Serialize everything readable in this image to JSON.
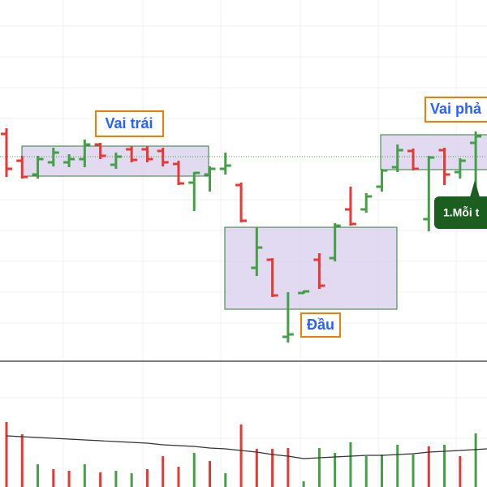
{
  "chart_data": [
    {
      "type": "ohlc",
      "up_color": "#43a047",
      "down_color": "#e53935",
      "ylim": [
        0,
        445
      ],
      "reference_line": 252,
      "open": [
        280,
        247,
        230,
        245,
        245,
        249,
        267,
        242,
        261,
        261,
        259,
        243,
        220,
        230,
        237,
        217,
        115,
        125,
        30,
        84,
        125,
        127,
        187,
        187,
        215,
        239,
        259,
        175,
        260,
        233,
        269
      ],
      "high": [
        287,
        253,
        253,
        263,
        255,
        273,
        269,
        257,
        265,
        265,
        263,
        247,
        233,
        240,
        257,
        220,
        165,
        127,
        85,
        87,
        133,
        170,
        215,
        207,
        237,
        267,
        262,
        253,
        263,
        250,
        283
      ],
      "low": [
        227,
        225,
        225,
        240,
        239,
        239,
        249,
        237,
        245,
        245,
        240,
        217,
        185,
        209,
        230,
        171,
        105,
        79,
        23,
        83,
        89,
        123,
        167,
        183,
        209,
        233,
        235,
        160,
        217,
        225,
        205
      ],
      "close": [
        237,
        227,
        249,
        257,
        249,
        267,
        253,
        252,
        248,
        249,
        245,
        219,
        232,
        237,
        241,
        173,
        140,
        81,
        33,
        86,
        93,
        167,
        169,
        203,
        235,
        260,
        237,
        251,
        230,
        247,
        277
      ],
      "annotations": [
        "Vai trái",
        "Đầu",
        "Vai phả",
        "1.Mỗi t"
      ]
    },
    {
      "type": "volume",
      "ylim": [
        0,
        155
      ],
      "values": [
        80,
        65,
        28,
        22,
        20,
        28,
        18,
        20,
        17,
        22,
        38,
        25,
        42,
        32,
        17,
        77,
        47,
        47,
        48,
        7,
        48,
        42,
        55,
        38,
        40,
        52,
        40,
        50,
        52,
        38,
        66
      ],
      "colors": [
        "#e53935",
        "#e53935",
        "#43a047",
        "#e53935",
        "#e53935",
        "#43a047",
        "#e53935",
        "#43a047",
        "#43a047",
        "#e53935",
        "#e53935",
        "#e53935",
        "#43a047",
        "#e53935",
        "#43a047",
        "#e53935",
        "#e53935",
        "#e53935",
        "#e53935",
        "#43a047",
        "#43a047",
        "#43a047",
        "#43a047",
        "#43a047",
        "#43a047",
        "#43a047",
        "#43a047",
        "#e53935",
        "#43a047",
        "#e53935",
        "#43a047"
      ],
      "ma": [
        63,
        62,
        61,
        60,
        59,
        58,
        57,
        56,
        55,
        54,
        52,
        51,
        50,
        48,
        47,
        45,
        43,
        40,
        38,
        35,
        36,
        37,
        38,
        39,
        39,
        40,
        41,
        43,
        44,
        45,
        47
      ],
      "ma_color": "#333333"
    }
  ]
}
